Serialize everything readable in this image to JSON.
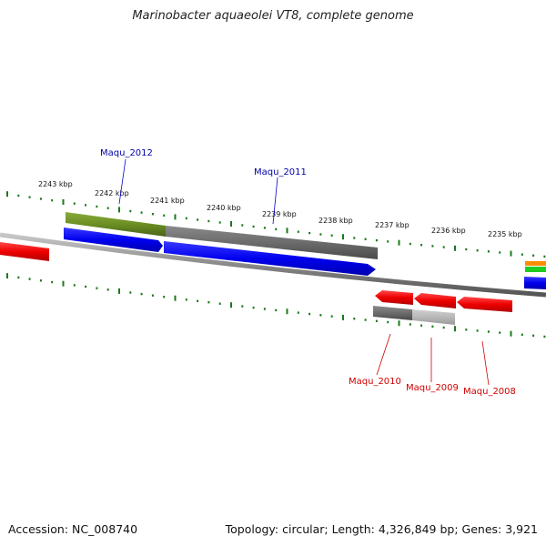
{
  "title": "Marinobacter aquaeolei VT8, complete genome",
  "footer": {
    "accession": "Accession: NC_008740",
    "summary": "Topology: circular; Length: 4,326,849 bp; Genes: 3,921"
  },
  "colors": {
    "forward_gene": "#0000ee",
    "reverse_gene": "#ee0000",
    "tick": "#1a7a1a",
    "backbone": "#888888",
    "forward_label": "#0000aa",
    "reverse_label": "#cc0000"
  },
  "tick_labels": [
    "2243 kbp",
    "2242 kbp",
    "2241 kbp",
    "2240 kbp",
    "2239 kbp",
    "2238 kbp",
    "2237 kbp",
    "2236 kbp",
    "2235 kbp"
  ],
  "genes_forward": [
    {
      "label": "Maqu_2012",
      "strand": "forward"
    },
    {
      "label": "Maqu_2011",
      "strand": "forward"
    }
  ],
  "genes_reverse": [
    {
      "label": "Maqu_2010",
      "strand": "reverse"
    },
    {
      "label": "Maqu_2009",
      "strand": "reverse"
    },
    {
      "label": "Maqu_2008",
      "strand": "reverse"
    }
  ]
}
